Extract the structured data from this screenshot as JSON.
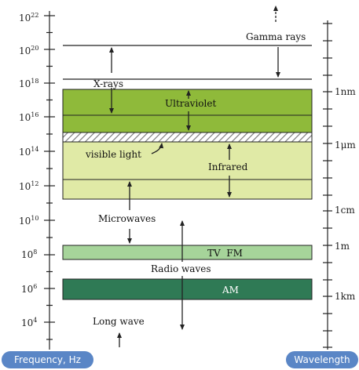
{
  "frequency_axis": {
    "label": "Frequency, Hz",
    "ticks": [
      {
        "base": "10",
        "exp": "22"
      },
      {
        "base": "10",
        "exp": "20"
      },
      {
        "base": "10",
        "exp": "18"
      },
      {
        "base": "10",
        "exp": "16"
      },
      {
        "base": "10",
        "exp": "14"
      },
      {
        "base": "10",
        "exp": "12"
      },
      {
        "base": "10",
        "exp": "10"
      },
      {
        "base": "10",
        "exp": "8"
      },
      {
        "base": "10",
        "exp": "6"
      },
      {
        "base": "10",
        "exp": "4"
      }
    ]
  },
  "wavelength_axis": {
    "label": "Wavelength",
    "ticks": [
      {
        "text": "1nm"
      },
      {
        "text": "1μm"
      },
      {
        "text": "1cm"
      },
      {
        "text": "1m"
      },
      {
        "text": "1km"
      }
    ]
  },
  "regions": {
    "gamma": "Gamma rays",
    "xray": "X-rays",
    "uv": "Ultraviolet",
    "visible": "visible light",
    "ir": "Infrared",
    "micro": "Microwaves",
    "tvfm": "TV  FM",
    "radio": "Radio waves",
    "am": "AM",
    "longwave": "Long wave"
  },
  "colors": {
    "uv_band": "#8fba3a",
    "ir_band": "#e0eaa6",
    "tvfm_band": "#a6d49a",
    "am_band": "#2f7a55",
    "pill": "#5a86c6"
  }
}
